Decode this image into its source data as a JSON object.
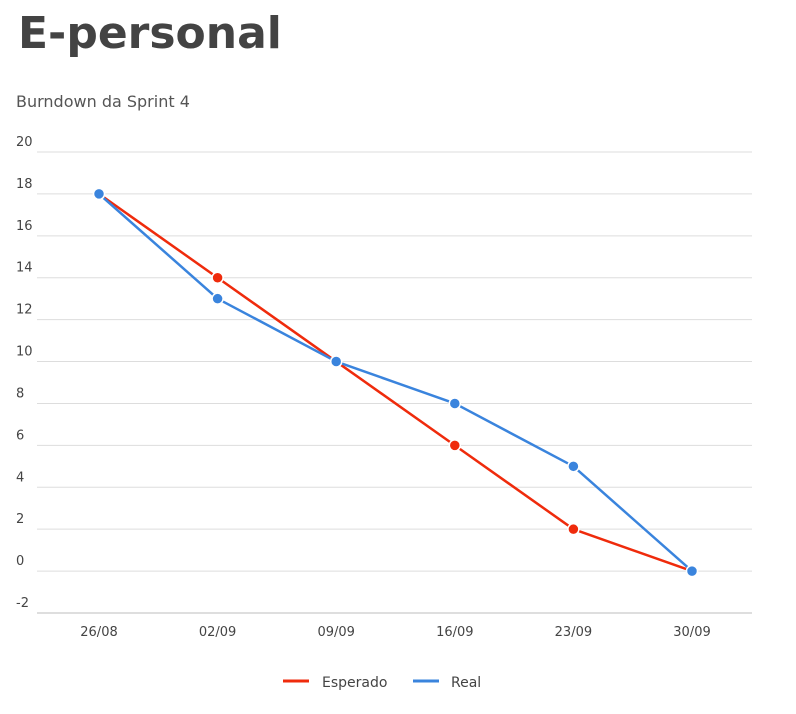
{
  "page": {
    "title": "E-personal"
  },
  "chart_data": {
    "type": "line",
    "title": "Burndown da Sprint 4",
    "xlabel": "",
    "ylabel": "",
    "categories": [
      "26/08",
      "02/09",
      "09/09",
      "16/09",
      "23/09",
      "30/09"
    ],
    "y_ticks": [
      20,
      18,
      16,
      14,
      12,
      10,
      8,
      6,
      4,
      2,
      0,
      -2
    ],
    "ylim": [
      -2,
      20
    ],
    "grid": true,
    "legend_position": "bottom",
    "series": [
      {
        "name": "Esperado",
        "color": "#ef2b0c",
        "values": [
          18,
          14,
          10,
          6,
          2,
          0
        ]
      },
      {
        "name": "Real",
        "color": "#3a84dd",
        "values": [
          18,
          13,
          10,
          8,
          5,
          0
        ]
      }
    ]
  }
}
